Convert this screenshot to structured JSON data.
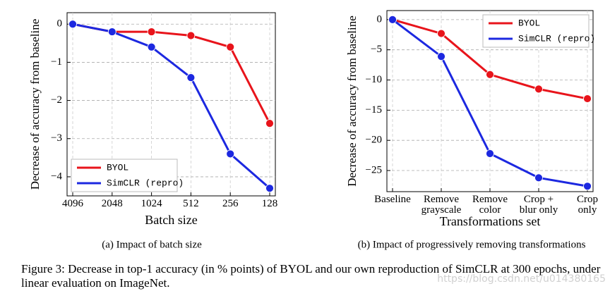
{
  "chart_data": [
    {
      "type": "line",
      "subcaption": "(a) Impact of batch size",
      "xlabel": "Batch size",
      "ylabel": "Decrease of accuracy from baseline",
      "categories": [
        "4096",
        "2048",
        "1024",
        "512",
        "256",
        "128"
      ],
      "series": [
        {
          "name": "BYOL",
          "color": "#e8141b",
          "values": [
            0,
            -0.2,
            -0.2,
            -0.3,
            -0.6,
            -2.6
          ]
        },
        {
          "name": "SimCLR (repro)",
          "color": "#1c28e0",
          "values": [
            0,
            -0.2,
            -0.6,
            -1.4,
            -3.4,
            -4.3
          ]
        }
      ],
      "ylim": [
        -4.5,
        0.3
      ],
      "yticks": [
        {
          "value": -4,
          "label": "−4"
        },
        {
          "value": -3,
          "label": "−3"
        },
        {
          "value": -2,
          "label": "−2"
        },
        {
          "value": -1,
          "label": "−1"
        },
        0
      ],
      "grid": true,
      "legend": "lower-left"
    },
    {
      "type": "line",
      "subcaption": "(b) Impact of progressively removing transformations",
      "xlabel": "Transformations set",
      "ylabel": "Decrease of accuracy from baseline",
      "categories": [
        "Baseline",
        "Remove\ngrayscale",
        "Remove\ncolor",
        "Crop +\nblur only",
        "Crop\nonly"
      ],
      "series": [
        {
          "name": "BYOL",
          "color": "#e8141b",
          "values": [
            0,
            -2.3,
            -9.1,
            -11.5,
            -13.1
          ]
        },
        {
          "name": "SimCLR (repro)",
          "color": "#1c28e0",
          "values": [
            0,
            -6.1,
            -22.2,
            -26.2,
            -27.6
          ]
        }
      ],
      "ylim": [
        -28.5,
        1.5
      ],
      "yticks": [
        {
          "value": -25,
          "label": "−25"
        },
        {
          "value": -20,
          "label": "−20"
        },
        {
          "value": -15,
          "label": "−15"
        },
        {
          "value": -10,
          "label": "−10"
        },
        {
          "value": -5,
          "label": "−5"
        },
        0
      ],
      "grid": true,
      "legend": "upper-right"
    }
  ],
  "caption": "Figure 3: Decrease in top-1 accuracy (in % points) of BYOL and our own reproduction of SimCLR at 300 epochs, under linear evaluation on ImageNet.",
  "watermark": "https://blog.csdn.net/u014380165"
}
